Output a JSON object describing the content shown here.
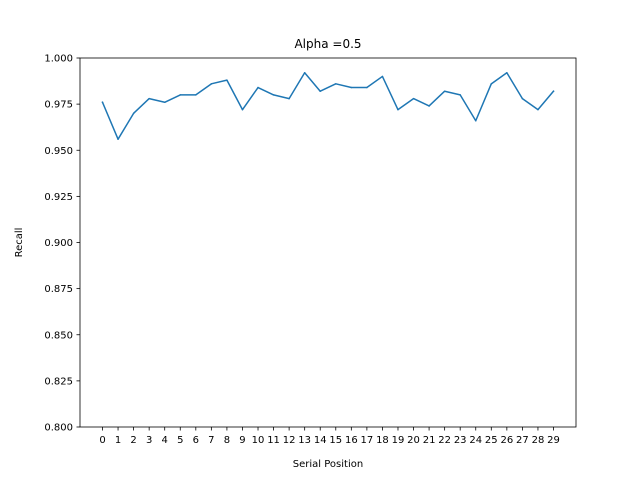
{
  "chart_data": {
    "type": "line",
    "title": "Alpha =0.5",
    "xlabel": "Serial Position",
    "ylabel": "Recall",
    "x": [
      "0",
      "1",
      "2",
      "3",
      "4",
      "5",
      "6",
      "7",
      "8",
      "9",
      "10",
      "11",
      "12",
      "13",
      "14",
      "15",
      "16",
      "17",
      "18",
      "19",
      "20",
      "21",
      "22",
      "23",
      "24",
      "25",
      "26",
      "27",
      "28",
      "29"
    ],
    "series": [
      {
        "values": [
          0.976,
          0.956,
          0.97,
          0.978,
          0.976,
          0.98,
          0.98,
          0.986,
          0.988,
          0.972,
          0.984,
          0.98,
          0.978,
          0.992,
          0.982,
          0.986,
          0.984,
          0.984,
          0.99,
          0.972,
          0.978,
          0.974,
          0.982,
          0.98,
          0.966,
          0.986,
          0.992,
          0.978,
          0.972,
          0.982
        ],
        "color": "#1f77b4"
      }
    ],
    "ylim": [
      0.8,
      1.0
    ],
    "yticks": [
      "0.800",
      "0.825",
      "0.850",
      "0.875",
      "0.900",
      "0.925",
      "0.950",
      "0.975",
      "1.000"
    ],
    "grid": false,
    "legend": "none"
  }
}
